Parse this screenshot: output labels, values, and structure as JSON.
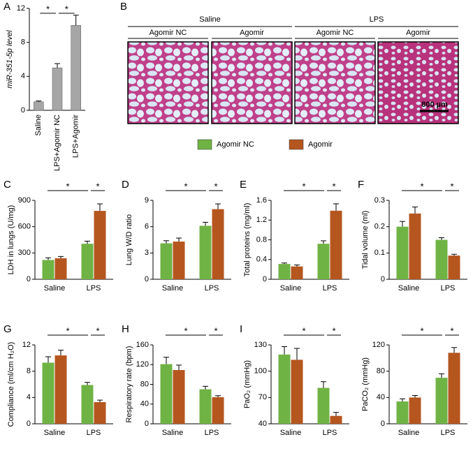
{
  "chart_data": [
    {
      "type": "bar",
      "panel": "A",
      "ylabel": "miR-351-5p level",
      "categories": [
        "Saline",
        "LPS+Agomir NC",
        "LPS+Agomir"
      ],
      "values": [
        1,
        5,
        10
      ],
      "errors": [
        0.1,
        0.5,
        1.2
      ],
      "color": "#a6a6a6",
      "ylim": [
        0,
        12
      ],
      "yticks": [
        0,
        4,
        8,
        12
      ],
      "annotations": [
        "*",
        "*"
      ]
    },
    {
      "type": "grouped_bar",
      "panel": "C",
      "ylabel": "LDH in lungs (U/mg)",
      "categories": [
        "Saline",
        "LPS"
      ],
      "series": [
        {
          "color": "#70b345",
          "values": [
            220,
            405
          ],
          "errors": [
            25,
            30
          ]
        },
        {
          "color": "#b5561f",
          "values": [
            240,
            780
          ],
          "errors": [
            20,
            80
          ]
        }
      ],
      "ylim": [
        0,
        900
      ],
      "yticks": [
        0,
        300,
        600,
        900
      ],
      "annotations": [
        "*",
        "*"
      ]
    },
    {
      "type": "grouped_bar",
      "panel": "D",
      "ylabel": "Lung W/D ratio",
      "categories": [
        "Saline",
        "LPS"
      ],
      "series": [
        {
          "color": "#70b345",
          "values": [
            4.1,
            6.1
          ],
          "errors": [
            0.3,
            0.4
          ]
        },
        {
          "color": "#b5561f",
          "values": [
            4.3,
            8.0
          ],
          "errors": [
            0.4,
            0.6
          ]
        }
      ],
      "ylim": [
        0,
        9
      ],
      "yticks": [
        0,
        3,
        6,
        9
      ],
      "annotations": [
        "*",
        "*"
      ]
    },
    {
      "type": "grouped_bar",
      "panel": "E",
      "ylabel": "Total proteins (mg/ml)",
      "categories": [
        "Saline",
        "LPS"
      ],
      "series": [
        {
          "color": "#70b345",
          "values": [
            0.31,
            0.72
          ],
          "errors": [
            0.02,
            0.06
          ]
        },
        {
          "color": "#b5561f",
          "values": [
            0.26,
            1.39
          ],
          "errors": [
            0.03,
            0.14
          ]
        }
      ],
      "ylim": [
        0,
        1.6
      ],
      "yticks": [
        0,
        0.4,
        0.8,
        1.2,
        1.6
      ],
      "annotations": [
        "*",
        "*"
      ]
    },
    {
      "type": "grouped_bar",
      "panel": "F",
      "ylabel": "Tidal volume (ml)",
      "categories": [
        "Saline",
        "LPS"
      ],
      "series": [
        {
          "color": "#70b345",
          "values": [
            0.2,
            0.15
          ],
          "errors": [
            0.02,
            0.008
          ]
        },
        {
          "color": "#b5561f",
          "values": [
            0.25,
            0.09
          ],
          "errors": [
            0.025,
            0.005
          ]
        }
      ],
      "ylim": [
        0,
        0.3
      ],
      "yticks": [
        0,
        0.1,
        0.2,
        0.3
      ],
      "annotations": [
        "*",
        "*"
      ]
    },
    {
      "type": "grouped_bar",
      "panel": "G",
      "ylabel": "Compliance (ml/cm H₂O)",
      "categories": [
        "Saline",
        "LPS"
      ],
      "series": [
        {
          "color": "#70b345",
          "values": [
            9.3,
            5.9
          ],
          "errors": [
            0.9,
            0.4
          ]
        },
        {
          "color": "#b5561f",
          "values": [
            10.4,
            3.3
          ],
          "errors": [
            0.8,
            0.3
          ]
        }
      ],
      "ylim": [
        0,
        12
      ],
      "yticks": [
        0,
        4,
        8,
        12
      ],
      "annotations": [
        "*",
        "*"
      ]
    },
    {
      "type": "grouped_bar",
      "panel": "H",
      "ylabel": "Respiratory rate (bpm)",
      "categories": [
        "Saline",
        "LPS"
      ],
      "series": [
        {
          "color": "#70b345",
          "values": [
            121,
            70
          ],
          "errors": [
            14,
            6
          ]
        },
        {
          "color": "#b5561f",
          "values": [
            109,
            54
          ],
          "errors": [
            10,
            3
          ]
        }
      ],
      "ylim": [
        0,
        160
      ],
      "yticks": [
        0,
        40,
        80,
        120,
        160
      ],
      "annotations": [
        "*",
        "*"
      ]
    },
    {
      "type": "grouped_bar",
      "panel": "I",
      "ylabel": "PaO₂ (mmHg)",
      "categories": [
        "Saline",
        "LPS"
      ],
      "series": [
        {
          "color": "#70b345",
          "values": [
            119,
            81
          ],
          "errors": [
            9,
            7
          ]
        },
        {
          "color": "#b5561f",
          "values": [
            113,
            49
          ],
          "errors": [
            13,
            4
          ]
        }
      ],
      "ylim": [
        40,
        130
      ],
      "yticks": [
        40,
        70,
        100,
        130
      ],
      "annotations": [
        "*",
        "*"
      ]
    },
    {
      "type": "grouped_bar",
      "ylabel": "PaCO₂ (mmHg)",
      "categories": [
        "Saline",
        "LPS"
      ],
      "series": [
        {
          "color": "#70b345",
          "values": [
            34,
            70
          ],
          "errors": [
            4,
            6
          ]
        },
        {
          "color": "#b5561f",
          "values": [
            40,
            108
          ],
          "errors": [
            3,
            8
          ]
        }
      ],
      "ylim": [
        0,
        120
      ],
      "yticks": [
        0,
        40,
        80,
        120
      ],
      "annotations": [
        "*",
        "*"
      ]
    }
  ],
  "legend": [
    {
      "name": "Agomir NC",
      "color": "#70b345"
    },
    {
      "name": "Agomir",
      "color": "#b5561f"
    }
  ],
  "histology": {
    "panel": "B",
    "groups": [
      {
        "label": "Saline",
        "images": [
          {
            "label": "Agomir NC"
          },
          {
            "label": "Agomir"
          }
        ]
      },
      {
        "label": "LPS",
        "images": [
          {
            "label": "Agomir NC"
          },
          {
            "label": "Agomir"
          }
        ]
      }
    ],
    "scale_bar": "800 µm"
  }
}
